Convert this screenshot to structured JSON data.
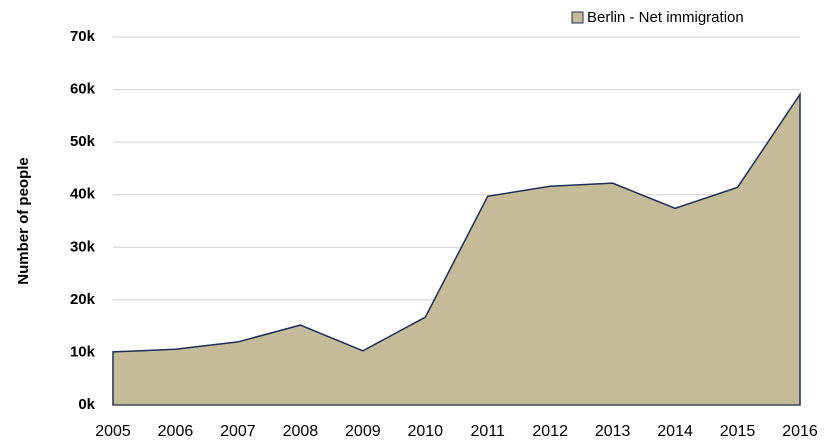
{
  "chart_data": {
    "type": "area",
    "y_label": "Number of people",
    "categories": [
      "2005",
      "2006",
      "2007",
      "2008",
      "2009",
      "2010",
      "2011",
      "2012",
      "2013",
      "2014",
      "2015",
      "2016"
    ],
    "series": [
      {
        "name": "Berlin - Net immigration",
        "color": "#c4bc98",
        "values": [
          10100,
          10600,
          12000,
          15200,
          10300,
          16700,
          39700,
          41600,
          42200,
          37400,
          41400,
          59100
        ]
      }
    ],
    "ylim": [
      0,
      70000
    ],
    "yticks": [
      {
        "value": 0,
        "label": "0k"
      },
      {
        "value": 10000,
        "label": "10k"
      },
      {
        "value": 20000,
        "label": "20k"
      },
      {
        "value": 30000,
        "label": "30k"
      },
      {
        "value": 40000,
        "label": "40k"
      },
      {
        "value": 50000,
        "label": "50k"
      },
      {
        "value": 60000,
        "label": "60k"
      },
      {
        "value": 70000,
        "label": "70k"
      }
    ],
    "grid": true,
    "legend": "top-right"
  }
}
